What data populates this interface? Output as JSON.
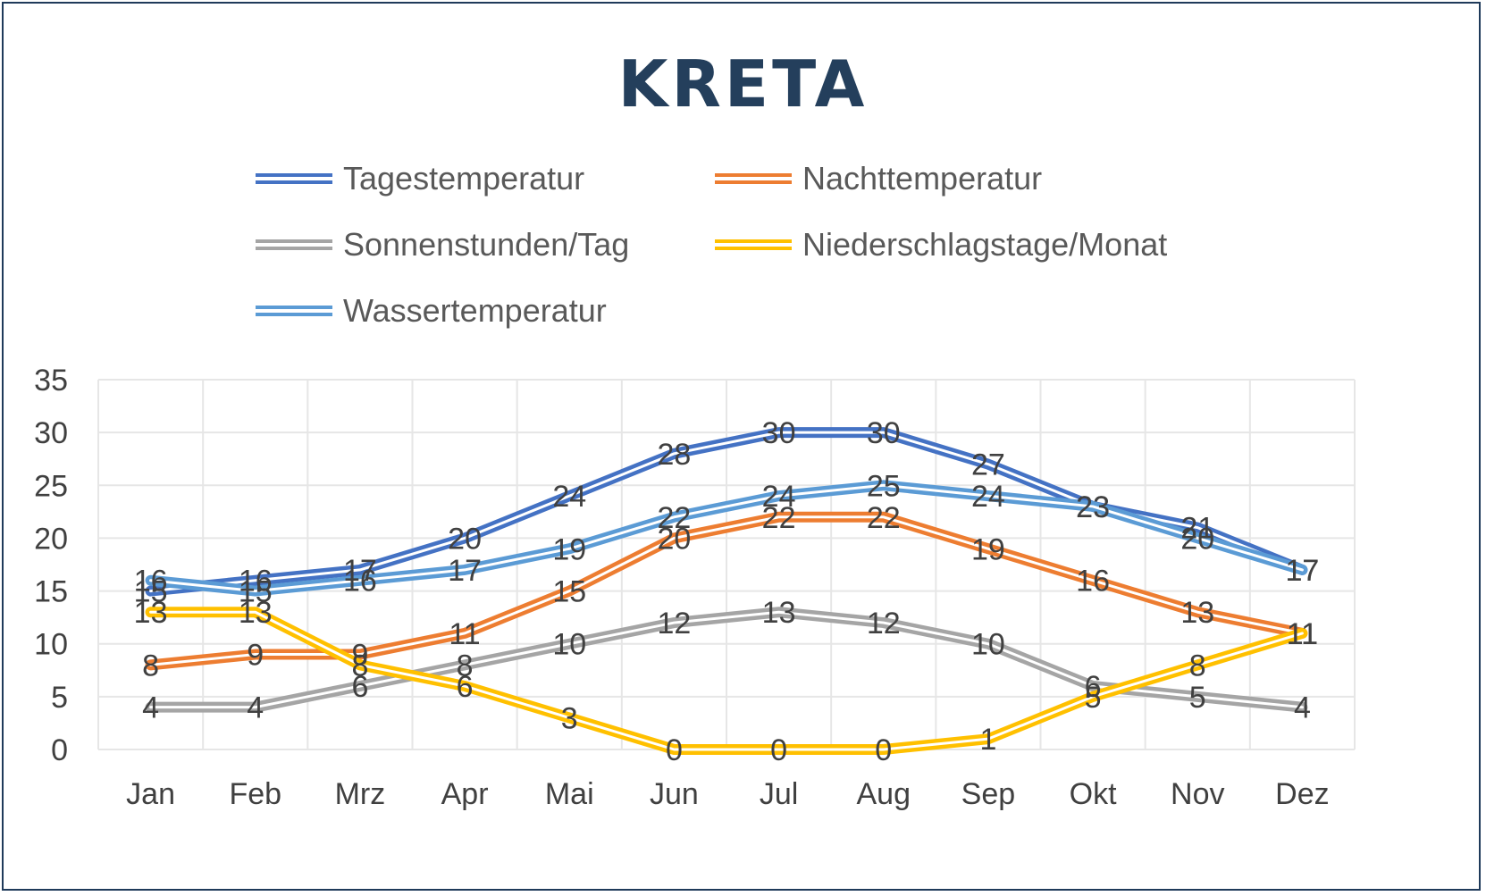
{
  "chart_data": {
    "type": "line",
    "title": "KRETA",
    "xlabel": "",
    "ylabel": "",
    "categories": [
      "Jan",
      "Feb",
      "Mrz",
      "Apr",
      "Mai",
      "Jun",
      "Jul",
      "Aug",
      "Sep",
      "Okt",
      "Nov",
      "Dez"
    ],
    "ylim": [
      0,
      35
    ],
    "yticks": [
      0,
      5,
      10,
      15,
      20,
      25,
      30,
      35
    ],
    "grid": true,
    "legend_position": "top",
    "series": [
      {
        "name": "Tagestemperatur",
        "color": "#4472c4",
        "values": [
          15,
          16,
          17,
          20,
          24,
          28,
          30,
          30,
          27,
          23,
          21,
          17
        ]
      },
      {
        "name": "Nachttemperatur",
        "color": "#ed7d31",
        "values": [
          8,
          9,
          9,
          11,
          15,
          20,
          22,
          22,
          19,
          16,
          13,
          11
        ]
      },
      {
        "name": "Sonnenstunden/Tag",
        "color": "#a5a5a5",
        "values": [
          4,
          4,
          6,
          8,
          10,
          12,
          13,
          12,
          10,
          6,
          5,
          4
        ]
      },
      {
        "name": "Niederschlagstage/Monat",
        "color": "#ffc000",
        "values": [
          13,
          13,
          8,
          6,
          3,
          0,
          0,
          0,
          1,
          5,
          8,
          11
        ]
      },
      {
        "name": "Wassertemperatur",
        "color": "#5b9bd5",
        "values": [
          16,
          15,
          16,
          17,
          19,
          22,
          24,
          25,
          24,
          23,
          20,
          17
        ]
      }
    ]
  }
}
